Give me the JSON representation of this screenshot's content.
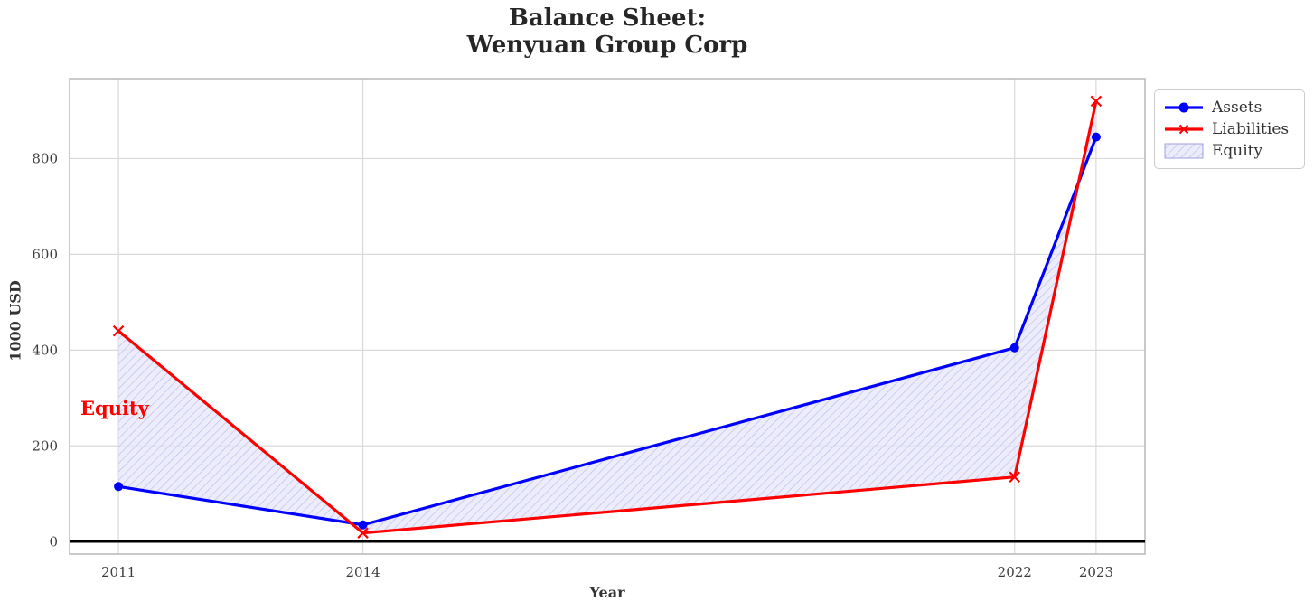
{
  "title": {
    "line1": "Balance Sheet:",
    "line2": "Wenyuan Group Corp"
  },
  "axes": {
    "x_label": "Year",
    "y_label": "1000 USD",
    "x_tick_labels": [
      "2011",
      "2014",
      "2022",
      "2023"
    ],
    "y_tick_labels": [
      "0",
      "200",
      "400",
      "600",
      "800"
    ]
  },
  "annotation": {
    "text": "Equity"
  },
  "legend": {
    "items": [
      {
        "label": "Assets",
        "sample": "blue-line-circle-marker"
      },
      {
        "label": "Liabilities",
        "sample": "red-line-x-marker"
      },
      {
        "label": "Equity",
        "sample": "hatched-patch"
      }
    ]
  },
  "colors": {
    "assets": "#0000ff",
    "liabilities": "#ff0000",
    "equity_fill": "#e7e7f9",
    "equity_hatch": "#8f8fdc",
    "grid": "#d9d9d9",
    "spine": "#b9b9b9",
    "zero_line": "#000000",
    "tick_text": "#3d3d3d"
  },
  "chart_data": {
    "type": "line",
    "title": "Balance Sheet:\nWenyuan Group Corp",
    "xlabel": "Year",
    "ylabel": "1000 USD",
    "x": [
      2011,
      2014,
      2022,
      2023
    ],
    "series": [
      {
        "name": "Assets",
        "values": [
          115,
          35,
          405,
          845
        ],
        "color": "#0000ff",
        "marker": "circle",
        "linewidth": 3
      },
      {
        "name": "Liabilities",
        "values": [
          440,
          18,
          135,
          920
        ],
        "color": "#ff0000",
        "marker": "x",
        "linewidth": 3
      }
    ],
    "fill_between": {
      "label": "Equity",
      "between": [
        "Assets",
        "Liabilities"
      ],
      "facecolor": "#e6e6fa",
      "hatch": "/"
    },
    "x_ticks": [
      2011,
      2014,
      2022,
      2023
    ],
    "y_ticks": [
      0,
      200,
      400,
      600,
      800
    ],
    "xlim": [
      2010.4,
      2023.6
    ],
    "ylim": [
      -26,
      967
    ],
    "grid": true,
    "zero_line_y": 0,
    "legend_position": "upper right"
  }
}
